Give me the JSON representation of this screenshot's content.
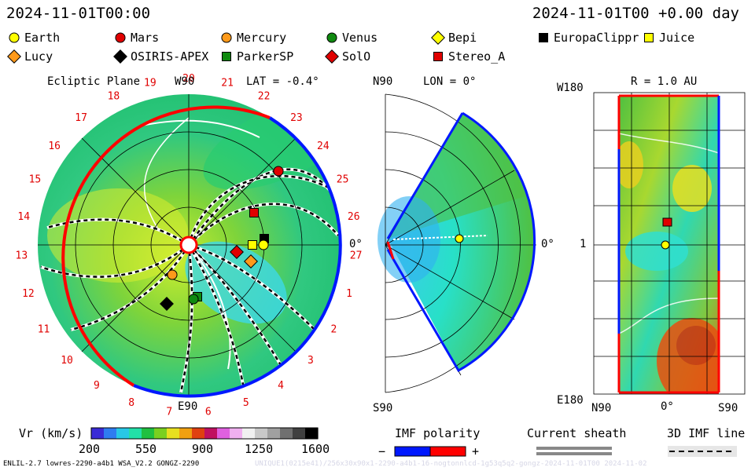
{
  "header": {
    "datetime_left": "2024-11-01T00:00",
    "datetime_right": "2024-11-01T00 +0.00 day"
  },
  "legend": [
    {
      "name": "Earth",
      "marker": "circle",
      "color": "#ffff00"
    },
    {
      "name": "Mars",
      "marker": "circle",
      "color": "#e00000"
    },
    {
      "name": "Mercury",
      "marker": "circle",
      "color": "#ff9a1a"
    },
    {
      "name": "Venus",
      "marker": "circle",
      "color": "#108a10"
    },
    {
      "name": "Bepi",
      "marker": "diamond",
      "color": "#ffff00"
    },
    {
      "name": "EuropaClippr",
      "marker": "square",
      "color": "#000000"
    },
    {
      "name": "Juice",
      "marker": "square",
      "color": "#ffff00"
    },
    {
      "name": "Lucy",
      "marker": "diamond",
      "color": "#ff9a1a"
    },
    {
      "name": "OSIRIS-APEX",
      "marker": "diamond",
      "color": "#000000"
    },
    {
      "name": "ParkerSP",
      "marker": "square",
      "color": "#108a10"
    },
    {
      "name": "SolO",
      "marker": "diamond",
      "color": "#e00000"
    },
    {
      "name": "Stereo_A",
      "marker": "square",
      "color": "#e00000"
    }
  ],
  "ecliptic": {
    "title": "Ecliptic Plane",
    "top_label": "W90",
    "bottom_label": "E90",
    "lat_label": "LAT = -0.4°",
    "right_label": "0°",
    "carrington_ticks": [
      "20",
      "21",
      "22",
      "23",
      "24",
      "25",
      "26",
      "27",
      "1",
      "2",
      "3",
      "4",
      "5",
      "6",
      "7",
      "8",
      "9",
      "10",
      "11",
      "12",
      "13",
      "14",
      "15",
      "16",
      "17",
      "18",
      "19"
    ]
  },
  "meridional": {
    "top_label": "N90",
    "lon_label": "LON = 0°",
    "bottom_label": "S90",
    "right_label": "0°"
  },
  "sphere": {
    "title": "R = 1.0 AU",
    "top_left": "W180",
    "bottom_left": "E180",
    "mid_left": "1",
    "xlabels": [
      "N90",
      "0°",
      "S90"
    ]
  },
  "colorbar": {
    "label": "Vr (km/s)",
    "ticks": [
      "200",
      "550",
      "900",
      "1250",
      "1600"
    ],
    "colors": [
      "#3a2bd6",
      "#2f7cf0",
      "#28c8e6",
      "#22e0a8",
      "#20c040",
      "#7ad020",
      "#e8e020",
      "#f0a010",
      "#e04010",
      "#c01060",
      "#e060e0",
      "#f0b0f0",
      "#f0f0f0",
      "#c8c8c8",
      "#a0a0a0",
      "#707070",
      "#404040",
      "#000000"
    ]
  },
  "imf": {
    "label": "IMF polarity",
    "minus": "−",
    "plus": "+",
    "neg_color": "#0018ff",
    "pos_color": "#ff0000"
  },
  "sheath": {
    "label": "Current sheath"
  },
  "imf3d": {
    "label": "3D IMF line"
  },
  "footer": {
    "left": "ENLIL-2.7 lowres-2290-a4b1 WSA_V2.2 GONGZ-2290",
    "right": "UNIQUE1(0215e41)/256x30x90x1-2290-a4b1-16-nogtonnlcd-1g53q5q2-gongz-2024-11-01T00  2024-11-02"
  }
}
